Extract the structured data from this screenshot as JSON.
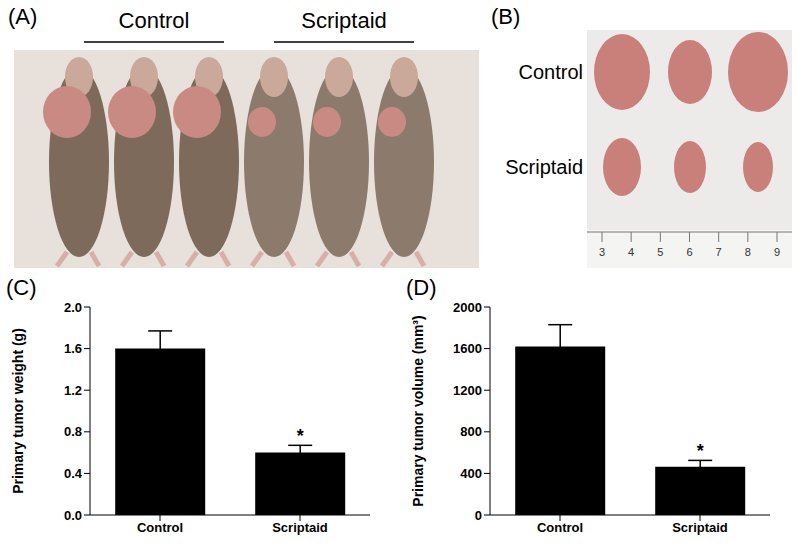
{
  "panel_A": {
    "label": "(A)",
    "groups": [
      "Control",
      "Scriptaid"
    ]
  },
  "panel_B": {
    "label": "(B)",
    "rows": [
      "Control",
      "Scriptaid"
    ],
    "ruler_labels": [
      3,
      4,
      5,
      6,
      7,
      8,
      9
    ]
  },
  "chart_data": [
    {
      "type": "bar",
      "title": "(C)",
      "categories": [
        "Control",
        "Scriptaid"
      ],
      "values": [
        1.6,
        0.6
      ],
      "errors": [
        0.17,
        0.07
      ],
      "color": "#000000",
      "y_label": "Primary tumor weight (g)",
      "ylim": [
        0,
        2
      ],
      "yticks": [
        {
          "value": 0,
          "label": "0.0"
        },
        0.4,
        0.8,
        1.2,
        1.6,
        {
          "value": 2,
          "label": "2.0"
        }
      ],
      "annotations": [
        {
          "category": "Scriptaid",
          "text": "*"
        }
      ]
    },
    {
      "type": "bar",
      "title": "(D)",
      "categories": [
        "Control",
        "Scriptaid"
      ],
      "values": [
        1620,
        465
      ],
      "errors": [
        210,
        60
      ],
      "color": "#000000",
      "y_label": "Primary tumor volume (mm³)",
      "ylim": [
        0,
        2000
      ],
      "yticks": [
        0,
        400,
        800,
        1200,
        1600,
        2000
      ],
      "annotations": [
        {
          "category": "Scriptaid",
          "text": "*"
        }
      ]
    }
  ]
}
